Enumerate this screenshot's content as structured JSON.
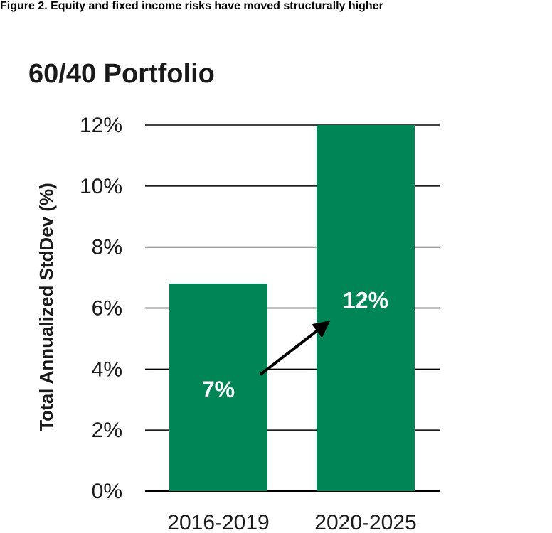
{
  "figure_caption": "Figure 2. Equity and fixed income risks have moved structurally higher",
  "colors": {
    "bar": "#008556",
    "grid": "#000000",
    "text": "#1a1a1a",
    "label": "#ffffff"
  },
  "chart_data": {
    "type": "bar",
    "title": "60/40 Portfolio",
    "xlabel": "",
    "ylabel": "Total Annualized StdDev (%)",
    "ylim": [
      0,
      12
    ],
    "yticks": [
      0,
      2,
      4,
      6,
      8,
      10,
      12
    ],
    "ytick_labels": [
      "0%",
      "2%",
      "4%",
      "6%",
      "8%",
      "10%",
      "12%"
    ],
    "categories": [
      "2016-2019",
      "2020-2025"
    ],
    "values": [
      6.8,
      12
    ],
    "data_labels": [
      "7%",
      "12%"
    ],
    "grid": true,
    "annotation": "arrow from first bar label to second bar label"
  }
}
